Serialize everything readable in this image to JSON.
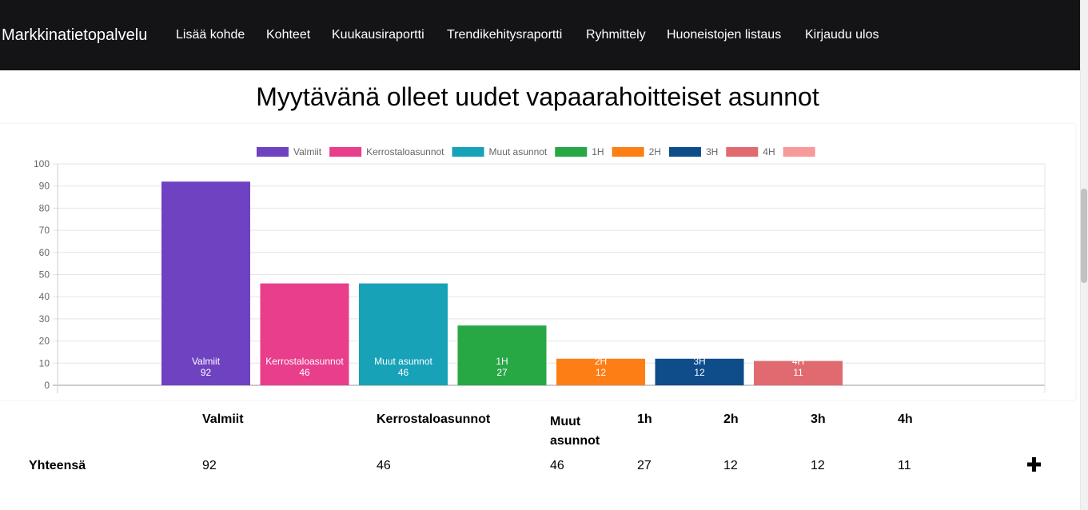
{
  "nav": {
    "brand": "Markkinatietopalvelu",
    "items": [
      "Lisää kohde",
      "Kohteet",
      "Kuukausiraportti",
      "Trendikehitysraportti",
      "Ryhmittely",
      "Huoneistojen listaus",
      "Kirjaudu ulos"
    ]
  },
  "page": {
    "title": "Myytävänä olleet uudet vapaarahoitteiset asunnot"
  },
  "chart_data": {
    "type": "bar",
    "title": "",
    "xlabel": "",
    "ylabel": "",
    "ylim": [
      0,
      100
    ],
    "y_ticks": [
      0,
      10,
      20,
      30,
      40,
      50,
      60,
      70,
      80,
      90,
      100
    ],
    "grid": true,
    "legend_position": "top",
    "legend": [
      {
        "label": "Valmiit",
        "color": "#6f42c1"
      },
      {
        "label": "Kerrostaloasunnot",
        "color": "#e83e8c"
      },
      {
        "label": "Muut asunnot",
        "color": "#17a2b8"
      },
      {
        "label": "1H",
        "color": "#28a745"
      },
      {
        "label": "2H",
        "color": "#fd7e14"
      },
      {
        "label": "3H",
        "color": "#0e4c8a"
      },
      {
        "label": "4H",
        "color": "#e06a6f"
      },
      {
        "label": "",
        "color": "#f79a9a"
      }
    ],
    "categories": [
      "Valmiit",
      "Kerrostaloasunnot",
      "Muut asunnot",
      "1H",
      "2H",
      "3H",
      "4H"
    ],
    "values": [
      92,
      46,
      46,
      27,
      12,
      12,
      11
    ],
    "colors": [
      "#6f42c1",
      "#e83e8c",
      "#17a2b8",
      "#28a745",
      "#fd7e14",
      "#0e4c8a",
      "#e06a6f"
    ],
    "data_labels": [
      {
        "name": "Valmiit",
        "value": "92"
      },
      {
        "name": "Kerrostaloasunnot",
        "value": "46"
      },
      {
        "name": "Muut asunnot",
        "value": "46"
      },
      {
        "name": "1H",
        "value": "27"
      },
      {
        "name": "2H",
        "value": "12"
      },
      {
        "name": "3H",
        "value": "12"
      },
      {
        "name": "4H",
        "value": "11"
      }
    ]
  },
  "table": {
    "headers": [
      "Valmiit",
      "Kerrostaloasunnot",
      "Muut asunnot",
      "1h",
      "2h",
      "3h",
      "4h"
    ],
    "row_label": "Yhteensä",
    "values": [
      "92",
      "46",
      "46",
      "27",
      "12",
      "12",
      "11"
    ]
  },
  "icons": {
    "expand": "plus-icon"
  }
}
